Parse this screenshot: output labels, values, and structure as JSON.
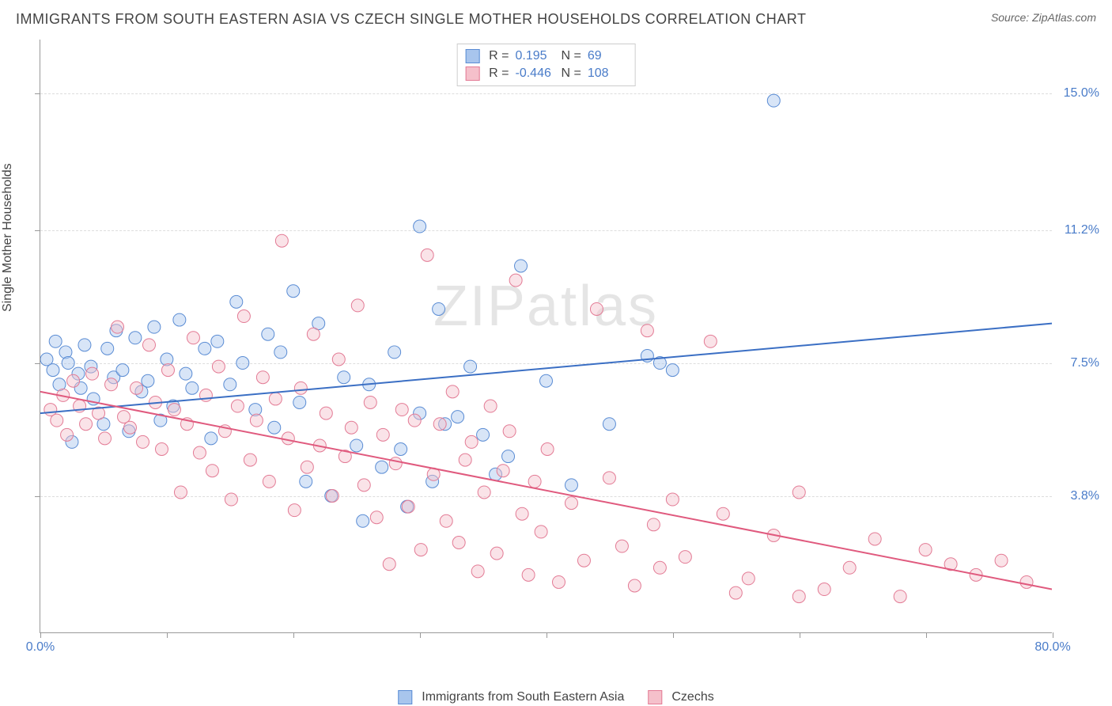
{
  "title": "IMMIGRANTS FROM SOUTH EASTERN ASIA VS CZECH SINGLE MOTHER HOUSEHOLDS CORRELATION CHART",
  "source": "Source: ZipAtlas.com",
  "watermark": {
    "zip": "ZIP",
    "atlas": "atlas"
  },
  "y_axis_title": "Single Mother Households",
  "chart": {
    "type": "scatter",
    "xlim": [
      0,
      80
    ],
    "ylim": [
      0,
      16.5
    ],
    "x_ticks": [
      0,
      10,
      20,
      30,
      40,
      50,
      60,
      70,
      80
    ],
    "x_tick_labels": {
      "0": "0.0%",
      "80": "80.0%"
    },
    "y_gridlines": [
      3.8,
      7.5,
      11.2,
      15.0
    ],
    "y_tick_labels": [
      "3.8%",
      "7.5%",
      "11.2%",
      "15.0%"
    ],
    "background_color": "#ffffff",
    "grid_color": "#dddddd",
    "axis_color": "#999999",
    "marker_radius": 8,
    "marker_opacity": 0.45,
    "line_width": 2,
    "series": [
      {
        "name": "Immigrants from South Eastern Asia",
        "color_fill": "#a8c5ed",
        "color_stroke": "#5a8cd4",
        "line_color": "#3b6fc4",
        "R": "0.195",
        "N": "69",
        "regression": {
          "x1": 0,
          "y1": 6.1,
          "x2": 80,
          "y2": 8.6
        },
        "points": [
          [
            0.5,
            7.6
          ],
          [
            1,
            7.3
          ],
          [
            1.2,
            8.1
          ],
          [
            1.5,
            6.9
          ],
          [
            2,
            7.8
          ],
          [
            2.2,
            7.5
          ],
          [
            2.5,
            5.3
          ],
          [
            3,
            7.2
          ],
          [
            3.2,
            6.8
          ],
          [
            3.5,
            8.0
          ],
          [
            4,
            7.4
          ],
          [
            4.2,
            6.5
          ],
          [
            5,
            5.8
          ],
          [
            5.3,
            7.9
          ],
          [
            5.8,
            7.1
          ],
          [
            6,
            8.4
          ],
          [
            6.5,
            7.3
          ],
          [
            7,
            5.6
          ],
          [
            7.5,
            8.2
          ],
          [
            8,
            6.7
          ],
          [
            8.5,
            7.0
          ],
          [
            9,
            8.5
          ],
          [
            9.5,
            5.9
          ],
          [
            10,
            7.6
          ],
          [
            10.5,
            6.3
          ],
          [
            11,
            8.7
          ],
          [
            11.5,
            7.2
          ],
          [
            12,
            6.8
          ],
          [
            13,
            7.9
          ],
          [
            13.5,
            5.4
          ],
          [
            14,
            8.1
          ],
          [
            15,
            6.9
          ],
          [
            15.5,
            9.2
          ],
          [
            16,
            7.5
          ],
          [
            17,
            6.2
          ],
          [
            18,
            8.3
          ],
          [
            18.5,
            5.7
          ],
          [
            19,
            7.8
          ],
          [
            20,
            9.5
          ],
          [
            20.5,
            6.4
          ],
          [
            21,
            4.2
          ],
          [
            22,
            8.6
          ],
          [
            23,
            3.8
          ],
          [
            24,
            7.1
          ],
          [
            25,
            5.2
          ],
          [
            25.5,
            3.1
          ],
          [
            26,
            6.9
          ],
          [
            27,
            4.6
          ],
          [
            28,
            7.8
          ],
          [
            28.5,
            5.1
          ],
          [
            29,
            3.5
          ],
          [
            30,
            11.3
          ],
          [
            31,
            4.2
          ],
          [
            31.5,
            9.0
          ],
          [
            32,
            5.8
          ],
          [
            33,
            6.0
          ],
          [
            34,
            7.4
          ],
          [
            35,
            5.5
          ],
          [
            36,
            4.4
          ],
          [
            37,
            4.9
          ],
          [
            38,
            10.2
          ],
          [
            40,
            7.0
          ],
          [
            42,
            4.1
          ],
          [
            45,
            5.8
          ],
          [
            48,
            7.7
          ],
          [
            50,
            7.3
          ],
          [
            58,
            14.8
          ],
          [
            49,
            7.5
          ],
          [
            30,
            6.1
          ]
        ]
      },
      {
        "name": "Czechs",
        "color_fill": "#f5c0cb",
        "color_stroke": "#e37b95",
        "line_color": "#e05a7e",
        "R": "-0.446",
        "N": "108",
        "regression": {
          "x1": 0,
          "y1": 6.7,
          "x2": 80,
          "y2": 1.2
        },
        "points": [
          [
            0.8,
            6.2
          ],
          [
            1.3,
            5.9
          ],
          [
            1.8,
            6.6
          ],
          [
            2.1,
            5.5
          ],
          [
            2.6,
            7.0
          ],
          [
            3.1,
            6.3
          ],
          [
            3.6,
            5.8
          ],
          [
            4.1,
            7.2
          ],
          [
            4.6,
            6.1
          ],
          [
            5.1,
            5.4
          ],
          [
            5.6,
            6.9
          ],
          [
            6.1,
            8.5
          ],
          [
            6.6,
            6.0
          ],
          [
            7.1,
            5.7
          ],
          [
            7.6,
            6.8
          ],
          [
            8.1,
            5.3
          ],
          [
            8.6,
            8.0
          ],
          [
            9.1,
            6.4
          ],
          [
            9.6,
            5.1
          ],
          [
            10.1,
            7.3
          ],
          [
            10.6,
            6.2
          ],
          [
            11.1,
            3.9
          ],
          [
            11.6,
            5.8
          ],
          [
            12.1,
            8.2
          ],
          [
            12.6,
            5.0
          ],
          [
            13.1,
            6.6
          ],
          [
            13.6,
            4.5
          ],
          [
            14.1,
            7.4
          ],
          [
            14.6,
            5.6
          ],
          [
            15.1,
            3.7
          ],
          [
            15.6,
            6.3
          ],
          [
            16.1,
            8.8
          ],
          [
            16.6,
            4.8
          ],
          [
            17.1,
            5.9
          ],
          [
            17.6,
            7.1
          ],
          [
            18.1,
            4.2
          ],
          [
            18.6,
            6.5
          ],
          [
            19.1,
            10.9
          ],
          [
            19.6,
            5.4
          ],
          [
            20.1,
            3.4
          ],
          [
            20.6,
            6.8
          ],
          [
            21.1,
            4.6
          ],
          [
            21.6,
            8.3
          ],
          [
            22.1,
            5.2
          ],
          [
            22.6,
            6.1
          ],
          [
            23.1,
            3.8
          ],
          [
            23.6,
            7.6
          ],
          [
            24.1,
            4.9
          ],
          [
            24.6,
            5.7
          ],
          [
            25.1,
            9.1
          ],
          [
            25.6,
            4.1
          ],
          [
            26.1,
            6.4
          ],
          [
            26.6,
            3.2
          ],
          [
            27.1,
            5.5
          ],
          [
            27.6,
            1.9
          ],
          [
            28.1,
            4.7
          ],
          [
            28.6,
            6.2
          ],
          [
            29.1,
            3.5
          ],
          [
            29.6,
            5.9
          ],
          [
            30.1,
            2.3
          ],
          [
            30.6,
            10.5
          ],
          [
            31.1,
            4.4
          ],
          [
            31.6,
            5.8
          ],
          [
            32.1,
            3.1
          ],
          [
            32.6,
            6.7
          ],
          [
            33.1,
            2.5
          ],
          [
            33.6,
            4.8
          ],
          [
            34.1,
            5.3
          ],
          [
            34.6,
            1.7
          ],
          [
            35.1,
            3.9
          ],
          [
            35.6,
            6.3
          ],
          [
            36.1,
            2.2
          ],
          [
            36.6,
            4.5
          ],
          [
            37.1,
            5.6
          ],
          [
            37.6,
            9.8
          ],
          [
            38.1,
            3.3
          ],
          [
            38.6,
            1.6
          ],
          [
            39.1,
            4.2
          ],
          [
            39.6,
            2.8
          ],
          [
            40.1,
            5.1
          ],
          [
            41,
            1.4
          ],
          [
            42,
            3.6
          ],
          [
            43,
            2.0
          ],
          [
            44,
            9.0
          ],
          [
            45,
            4.3
          ],
          [
            46,
            2.4
          ],
          [
            47,
            1.3
          ],
          [
            48,
            8.4
          ],
          [
            48.5,
            3.0
          ],
          [
            49,
            1.8
          ],
          [
            50,
            3.7
          ],
          [
            51,
            2.1
          ],
          [
            53,
            8.1
          ],
          [
            54,
            3.3
          ],
          [
            55,
            1.1
          ],
          [
            56,
            1.5
          ],
          [
            58,
            2.7
          ],
          [
            60,
            3.9
          ],
          [
            62,
            1.2
          ],
          [
            64,
            1.8
          ],
          [
            66,
            2.6
          ],
          [
            68,
            1.0
          ],
          [
            70,
            2.3
          ],
          [
            72,
            1.9
          ],
          [
            74,
            1.6
          ],
          [
            76,
            2.0
          ],
          [
            78,
            1.4
          ],
          [
            60,
            1.0
          ]
        ]
      }
    ]
  },
  "legend_bottom": [
    {
      "label": "Immigrants from South Eastern Asia",
      "fill": "#a8c5ed",
      "stroke": "#5a8cd4"
    },
    {
      "label": "Czechs",
      "fill": "#f5c0cb",
      "stroke": "#e37b95"
    }
  ]
}
